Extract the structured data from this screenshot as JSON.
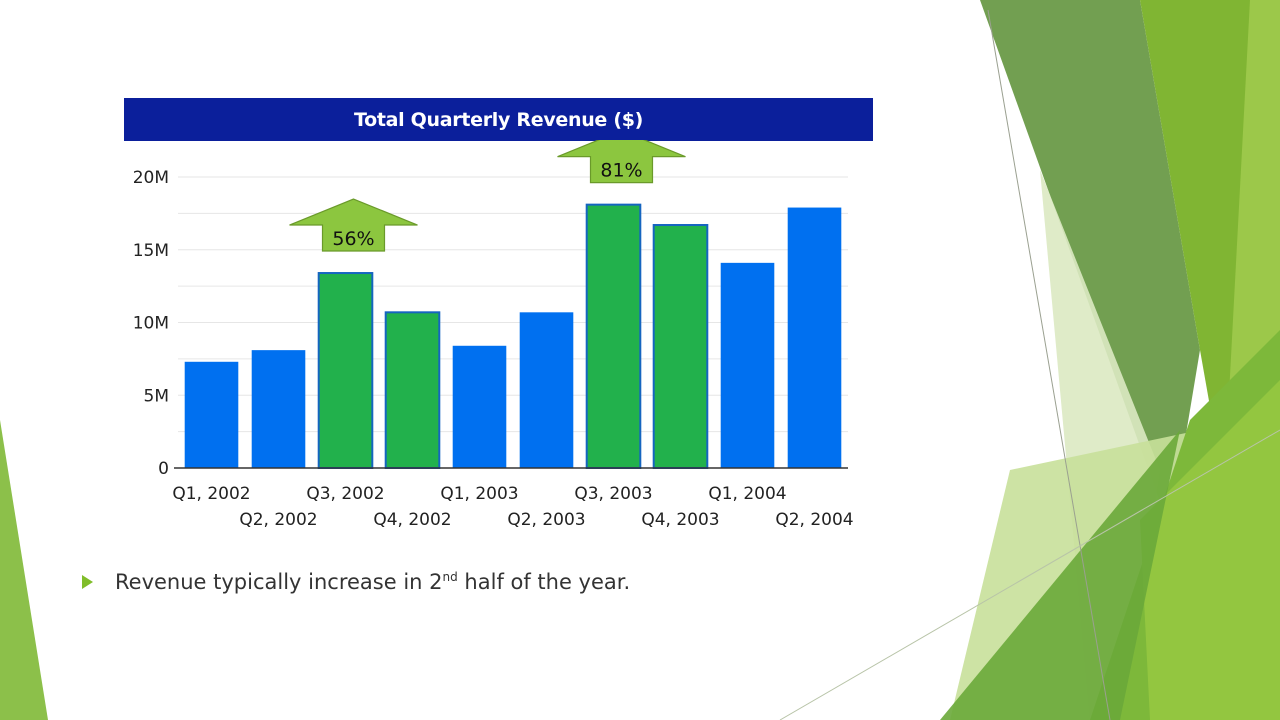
{
  "chart_data": {
    "type": "bar",
    "title": "Total Quarterly Revenue ($)",
    "categories": [
      "Q1, 2002",
      "Q2, 2002",
      "Q3, 2002",
      "Q4, 2002",
      "Q1, 2003",
      "Q2, 2003",
      "Q3, 2003",
      "Q4, 2003",
      "Q1, 2004",
      "Q2, 2004"
    ],
    "values": [
      7300000,
      8100000,
      13400000,
      10700000,
      8400000,
      10700000,
      18100000,
      16700000,
      14100000,
      17900000
    ],
    "highlighted": [
      false,
      false,
      true,
      true,
      false,
      false,
      true,
      true,
      false,
      false
    ],
    "yticks": [
      0,
      5000000,
      10000000,
      15000000,
      20000000
    ],
    "ytick_labels": [
      "0",
      "5M",
      "10M",
      "15M",
      "20M"
    ],
    "ylim": [
      0,
      22000000
    ],
    "xlabel": "",
    "ylabel": "",
    "grid": true,
    "annotations": [
      {
        "text": "56%",
        "category": "Q3, 2002",
        "shape": "up-arrow"
      },
      {
        "text": "81%",
        "category": "Q3, 2003",
        "shape": "up-arrow"
      }
    ]
  },
  "colors": {
    "bar_default": "#0070f0",
    "bar_highlight": "#22b14c",
    "title_bar": "#0b1f9b",
    "arrow_fill": "#8cc63f",
    "accent_green": "#80bd2a"
  },
  "bullet": {
    "icon": "triangle-bullet-icon",
    "text_before": "Revenue typically increase in 2",
    "superscript": "nd",
    "text_after": " half of the year."
  }
}
